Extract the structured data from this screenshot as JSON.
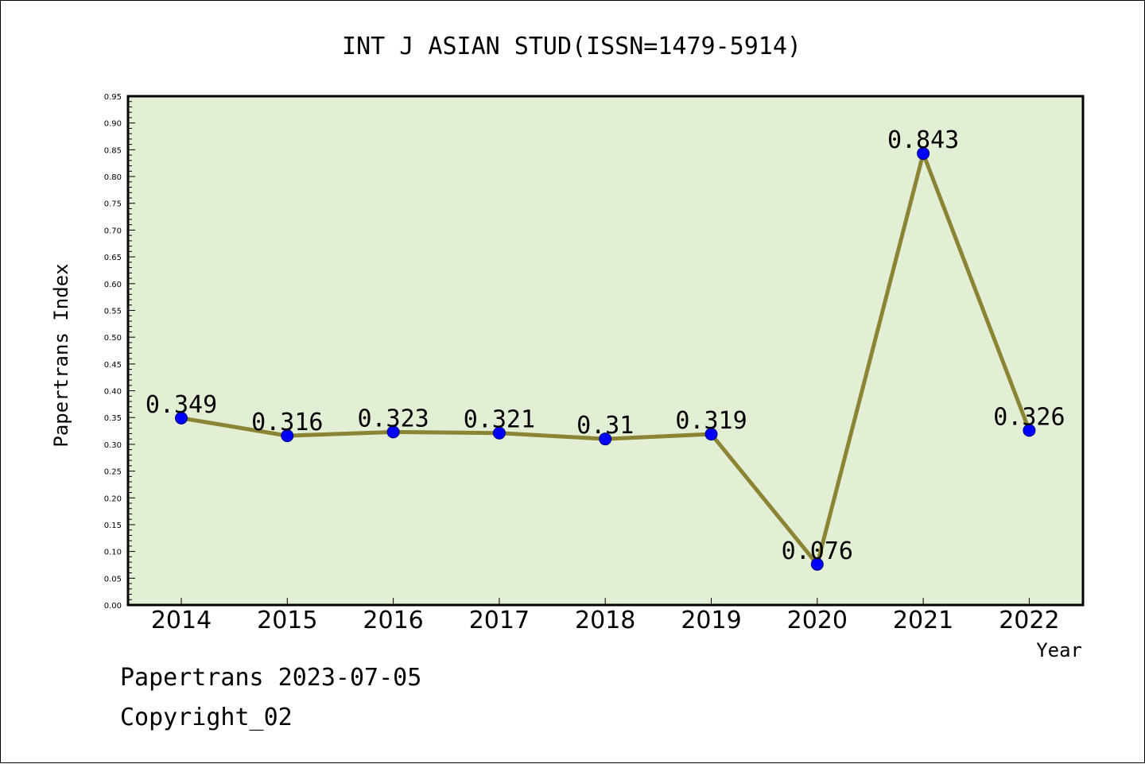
{
  "chart_data": {
    "type": "line",
    "title": "INT J ASIAN STUD(ISSN=1479-5914)",
    "xlabel": "Year",
    "ylabel": "Papertrans Index",
    "categories": [
      "2014",
      "2015",
      "2016",
      "2017",
      "2018",
      "2019",
      "2020",
      "2021",
      "2022"
    ],
    "values": [
      0.349,
      0.316,
      0.323,
      0.321,
      0.31,
      0.319,
      0.076,
      0.843,
      0.326
    ],
    "data_labels": [
      "0.349",
      "0.316",
      "0.323",
      "0.321",
      "0.31",
      "0.319",
      "0.076",
      "0.843",
      "0.326"
    ],
    "ylim": [
      0,
      0.95
    ],
    "yticks": [
      "0.00",
      "0.05",
      "0.10",
      "0.15",
      "0.20",
      "0.25",
      "0.30",
      "0.35",
      "0.40",
      "0.45",
      "0.50",
      "0.55",
      "0.60",
      "0.65",
      "0.70",
      "0.75",
      "0.80",
      "0.85",
      "0.90",
      "0.95"
    ],
    "grid": false,
    "colors": {
      "plot_background": "#e2efd5",
      "line": "#8b8434",
      "marker": "#0000ff"
    }
  },
  "footer": {
    "line1": "Papertrans 2023-07-05",
    "line2": "Copyright_02"
  }
}
